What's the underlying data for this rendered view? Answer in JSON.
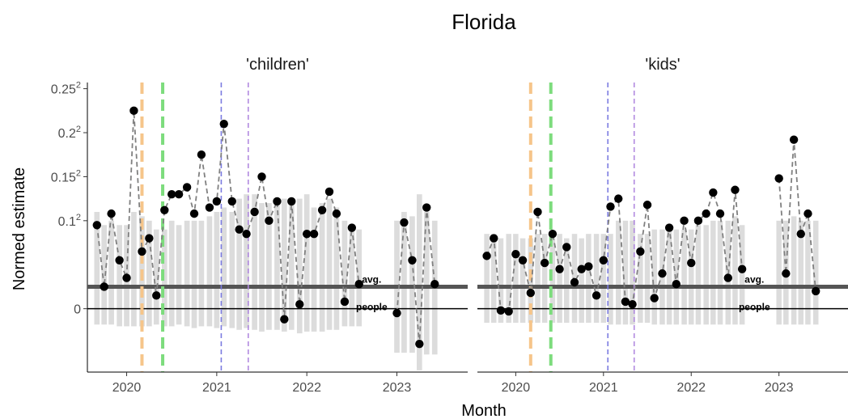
{
  "chart_data": {
    "type": "scatter",
    "title": "Florida",
    "xlabel": "Month",
    "ylabel": "Normed estimate",
    "x_ticks": [
      2020,
      2021,
      2022,
      2023
    ],
    "x_range": [
      2019.6,
      2023.75
    ],
    "y_ticks": [
      {
        "value": 0.25,
        "label": "0.25",
        "exp": "2"
      },
      {
        "value": 0.2,
        "label": "0.2",
        "exp": "2"
      },
      {
        "value": 0.15,
        "label": "0.15",
        "exp": "2"
      },
      {
        "value": 0.1,
        "label": "0.1",
        "exp": "2"
      },
      {
        "value": 0,
        "label": "0",
        "exp": ""
      }
    ],
    "y_range": [
      -0.072,
      0.257
    ],
    "grid": false,
    "reference_lines": {
      "avg": {
        "label": "avg.",
        "value": 0.025,
        "color": "#555555"
      },
      "people": {
        "label": "people",
        "value": 0.0,
        "color": "#000000"
      }
    },
    "event_lines": [
      {
        "x": 2020.17,
        "color": "#F6C58A",
        "style": "thick-dashed"
      },
      {
        "x": 2020.4,
        "color": "#7DDC7D",
        "style": "thick-dashed"
      },
      {
        "x": 2021.05,
        "color": "#7B7BE0",
        "style": "thin-dashed"
      },
      {
        "x": 2021.35,
        "color": "#B28BE0",
        "style": "thin-dashed"
      }
    ],
    "panels": [
      {
        "name": "'children'",
        "points": [
          {
            "x": 2019.67,
            "y": 0.095,
            "lo": -0.018,
            "hi": 0.11
          },
          {
            "x": 2019.75,
            "y": 0.025,
            "lo": -0.018,
            "hi": 0.095
          },
          {
            "x": 2019.83,
            "y": 0.108,
            "lo": -0.018,
            "hi": 0.1
          },
          {
            "x": 2019.92,
            "y": 0.055,
            "lo": -0.02,
            "hi": 0.095
          },
          {
            "x": 2020.0,
            "y": 0.035,
            "lo": -0.02,
            "hi": 0.095
          },
          {
            "x": 2020.08,
            "y": 0.225,
            "lo": -0.02,
            "hi": 0.11
          },
          {
            "x": 2020.17,
            "y": 0.065,
            "lo": -0.02,
            "hi": 0.105
          },
          {
            "x": 2020.25,
            "y": 0.08,
            "lo": -0.02,
            "hi": 0.1
          },
          {
            "x": 2020.33,
            "y": 0.015,
            "lo": -0.018,
            "hi": 0.09
          },
          {
            "x": 2020.42,
            "y": 0.112,
            "lo": -0.02,
            "hi": 0.09
          },
          {
            "x": 2020.5,
            "y": 0.13,
            "lo": -0.02,
            "hi": 0.1
          },
          {
            "x": 2020.58,
            "y": 0.13,
            "lo": -0.018,
            "hi": 0.095
          },
          {
            "x": 2020.67,
            "y": 0.138,
            "lo": -0.02,
            "hi": 0.1
          },
          {
            "x": 2020.75,
            "y": 0.108,
            "lo": -0.022,
            "hi": 0.1
          },
          {
            "x": 2020.83,
            "y": 0.175,
            "lo": -0.02,
            "hi": 0.1
          },
          {
            "x": 2020.92,
            "y": 0.115,
            "lo": -0.02,
            "hi": 0.105
          },
          {
            "x": 2021.0,
            "y": 0.122,
            "lo": -0.022,
            "hi": 0.11
          },
          {
            "x": 2021.08,
            "y": 0.21,
            "lo": -0.02,
            "hi": 0.115
          },
          {
            "x": 2021.17,
            "y": 0.122,
            "lo": -0.022,
            "hi": 0.11
          },
          {
            "x": 2021.25,
            "y": 0.09,
            "lo": -0.024,
            "hi": 0.125
          },
          {
            "x": 2021.33,
            "y": 0.085,
            "lo": -0.022,
            "hi": 0.13
          },
          {
            "x": 2021.42,
            "y": 0.11,
            "lo": -0.024,
            "hi": 0.13
          },
          {
            "x": 2021.5,
            "y": 0.15,
            "lo": -0.026,
            "hi": 0.12
          },
          {
            "x": 2021.58,
            "y": 0.1,
            "lo": -0.024,
            "hi": 0.12
          },
          {
            "x": 2021.67,
            "y": 0.122,
            "lo": -0.024,
            "hi": 0.125
          },
          {
            "x": 2021.75,
            "y": -0.012,
            "lo": -0.026,
            "hi": 0.125
          },
          {
            "x": 2021.83,
            "y": 0.122,
            "lo": -0.024,
            "hi": 0.12
          },
          {
            "x": 2021.92,
            "y": 0.005,
            "lo": -0.028,
            "hi": 0.125
          },
          {
            "x": 2022.0,
            "y": 0.085,
            "lo": -0.026,
            "hi": 0.13
          },
          {
            "x": 2022.08,
            "y": 0.085,
            "lo": -0.026,
            "hi": 0.115
          },
          {
            "x": 2022.17,
            "y": 0.112,
            "lo": -0.026,
            "hi": 0.12
          },
          {
            "x": 2022.25,
            "y": 0.133,
            "lo": -0.024,
            "hi": 0.125
          },
          {
            "x": 2022.33,
            "y": 0.108,
            "lo": -0.024,
            "hi": 0.115
          },
          {
            "x": 2022.42,
            "y": 0.008,
            "lo": -0.02,
            "hi": 0.1
          },
          {
            "x": 2022.5,
            "y": 0.092,
            "lo": -0.02,
            "hi": 0.095
          },
          {
            "x": 2022.58,
            "y": 0.028,
            "lo": -0.02,
            "hi": 0.09
          },
          {
            "x": 2023.0,
            "y": -0.005,
            "lo": -0.05,
            "hi": 0.1
          },
          {
            "x": 2023.08,
            "y": 0.098,
            "lo": -0.05,
            "hi": 0.11
          },
          {
            "x": 2023.17,
            "y": 0.055,
            "lo": -0.05,
            "hi": 0.105
          },
          {
            "x": 2023.25,
            "y": -0.04,
            "lo": -0.07,
            "hi": 0.13
          },
          {
            "x": 2023.33,
            "y": 0.115,
            "lo": -0.052,
            "hi": 0.11
          },
          {
            "x": 2023.42,
            "y": 0.028,
            "lo": -0.052,
            "hi": 0.1
          }
        ]
      },
      {
        "name": "'kids'",
        "points": [
          {
            "x": 2019.67,
            "y": 0.06,
            "lo": -0.016,
            "hi": 0.085
          },
          {
            "x": 2019.75,
            "y": 0.08,
            "lo": -0.016,
            "hi": 0.085
          },
          {
            "x": 2019.83,
            "y": -0.002,
            "lo": -0.016,
            "hi": 0.08
          },
          {
            "x": 2019.92,
            "y": -0.003,
            "lo": -0.016,
            "hi": 0.085
          },
          {
            "x": 2020.0,
            "y": 0.062,
            "lo": -0.016,
            "hi": 0.085
          },
          {
            "x": 2020.08,
            "y": 0.055,
            "lo": -0.016,
            "hi": 0.08
          },
          {
            "x": 2020.17,
            "y": 0.018,
            "lo": -0.016,
            "hi": 0.08
          },
          {
            "x": 2020.25,
            "y": 0.11,
            "lo": -0.016,
            "hi": 0.085
          },
          {
            "x": 2020.33,
            "y": 0.052,
            "lo": -0.016,
            "hi": 0.085
          },
          {
            "x": 2020.42,
            "y": 0.085,
            "lo": -0.016,
            "hi": 0.08
          },
          {
            "x": 2020.5,
            "y": 0.045,
            "lo": -0.016,
            "hi": 0.085
          },
          {
            "x": 2020.58,
            "y": 0.07,
            "lo": -0.016,
            "hi": 0.08
          },
          {
            "x": 2020.67,
            "y": 0.03,
            "lo": -0.016,
            "hi": 0.085
          },
          {
            "x": 2020.75,
            "y": 0.045,
            "lo": -0.016,
            "hi": 0.08
          },
          {
            "x": 2020.83,
            "y": 0.048,
            "lo": -0.016,
            "hi": 0.085
          },
          {
            "x": 2020.92,
            "y": 0.015,
            "lo": -0.016,
            "hi": 0.085
          },
          {
            "x": 2021.0,
            "y": 0.055,
            "lo": -0.016,
            "hi": 0.085
          },
          {
            "x": 2021.08,
            "y": 0.116,
            "lo": -0.018,
            "hi": 0.085
          },
          {
            "x": 2021.17,
            "y": 0.125,
            "lo": -0.018,
            "hi": 0.1
          },
          {
            "x": 2021.25,
            "y": 0.008,
            "lo": -0.018,
            "hi": 0.1
          },
          {
            "x": 2021.33,
            "y": 0.005,
            "lo": -0.018,
            "hi": 0.1
          },
          {
            "x": 2021.42,
            "y": 0.065,
            "lo": -0.016,
            "hi": 0.085
          },
          {
            "x": 2021.5,
            "y": 0.118,
            "lo": -0.016,
            "hi": 0.085
          },
          {
            "x": 2021.58,
            "y": 0.012,
            "lo": -0.018,
            "hi": 0.09
          },
          {
            "x": 2021.67,
            "y": 0.04,
            "lo": -0.018,
            "hi": 0.09
          },
          {
            "x": 2021.75,
            "y": 0.092,
            "lo": -0.018,
            "hi": 0.095
          },
          {
            "x": 2021.83,
            "y": 0.028,
            "lo": -0.018,
            "hi": 0.09
          },
          {
            "x": 2021.92,
            "y": 0.1,
            "lo": -0.018,
            "hi": 0.09
          },
          {
            "x": 2022.0,
            "y": 0.052,
            "lo": -0.018,
            "hi": 0.09
          },
          {
            "x": 2022.08,
            "y": 0.1,
            "lo": -0.018,
            "hi": 0.095
          },
          {
            "x": 2022.17,
            "y": 0.108,
            "lo": -0.018,
            "hi": 0.095
          },
          {
            "x": 2022.25,
            "y": 0.132,
            "lo": -0.018,
            "hi": 0.1
          },
          {
            "x": 2022.33,
            "y": 0.108,
            "lo": -0.018,
            "hi": 0.1
          },
          {
            "x": 2022.42,
            "y": 0.035,
            "lo": -0.018,
            "hi": 0.1
          },
          {
            "x": 2022.5,
            "y": 0.135,
            "lo": -0.018,
            "hi": 0.105
          },
          {
            "x": 2022.58,
            "y": 0.045,
            "lo": -0.018,
            "hi": 0.095
          },
          {
            "x": 2023.0,
            "y": 0.148,
            "lo": -0.018,
            "hi": 0.1
          },
          {
            "x": 2023.08,
            "y": 0.04,
            "lo": -0.018,
            "hi": 0.1
          },
          {
            "x": 2023.17,
            "y": 0.192,
            "lo": -0.018,
            "hi": 0.105
          },
          {
            "x": 2023.25,
            "y": 0.085,
            "lo": -0.018,
            "hi": 0.1
          },
          {
            "x": 2023.33,
            "y": 0.108,
            "lo": -0.018,
            "hi": 0.1
          },
          {
            "x": 2023.42,
            "y": 0.02,
            "lo": -0.018,
            "hi": 0.1
          }
        ]
      }
    ]
  }
}
